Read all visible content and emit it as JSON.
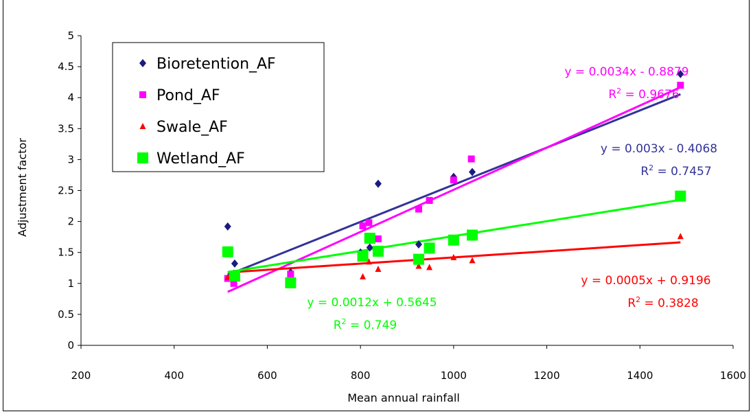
{
  "chart_data": {
    "type": "scatter",
    "xlabel": "Mean annual rainfall",
    "ylabel": "Adjustment factor",
    "xlim": [
      200,
      1600
    ],
    "ylim": [
      0,
      5
    ],
    "xticks": [
      "200",
      "400",
      "600",
      "800",
      "1000",
      "1200",
      "1400",
      "1600"
    ],
    "yticks": [
      "0",
      "0.5",
      "1",
      "1.5",
      "2",
      "2.5",
      "3",
      "3.5",
      "4",
      "4.5",
      "5"
    ],
    "legend_position": "top-left",
    "series": [
      {
        "name": "Bioretention_AF",
        "color": "#1a1a80",
        "marker": "diamond",
        "points": [
          [
            515,
            1.92
          ],
          [
            530,
            1.32
          ],
          [
            650,
            1.18
          ],
          [
            800,
            1.5
          ],
          [
            820,
            1.58
          ],
          [
            838,
            2.61
          ],
          [
            925,
            1.63
          ],
          [
            1000,
            2.72
          ],
          [
            1040,
            2.8
          ],
          [
            1487,
            4.38
          ]
        ],
        "trendline": {
          "slope": 0.003,
          "intercept": -0.4068,
          "color": "#333399",
          "label": "y = 0.003x - 0.4068",
          "r2": "R2 = 0.7457"
        }
      },
      {
        "name": "Pond_AF",
        "color": "#ff00ff",
        "marker": "square",
        "points": [
          [
            515,
            1.08
          ],
          [
            528,
            1.0
          ],
          [
            650,
            1.15
          ],
          [
            805,
            1.93
          ],
          [
            818,
            1.98
          ],
          [
            838,
            1.72
          ],
          [
            925,
            2.2
          ],
          [
            948,
            2.34
          ],
          [
            1000,
            2.67
          ],
          [
            1038,
            3.01
          ],
          [
            1487,
            4.2
          ]
        ],
        "trendline": {
          "slope": 0.0034,
          "intercept": -0.8879,
          "color": "#ff00ff",
          "label": "y = 0.0034x - 0.8879",
          "r2": "R2 = 0.9676"
        }
      },
      {
        "name": "Swale_AF",
        "color": "#ff0000",
        "marker": "triangle",
        "points": [
          [
            515,
            1.1
          ],
          [
            528,
            1.17
          ],
          [
            650,
            1.05
          ],
          [
            805,
            1.11
          ],
          [
            818,
            1.35
          ],
          [
            838,
            1.23
          ],
          [
            925,
            1.28
          ],
          [
            948,
            1.26
          ],
          [
            1000,
            1.42
          ],
          [
            1040,
            1.37
          ],
          [
            1487,
            1.76
          ]
        ],
        "trendline": {
          "slope": 0.0005,
          "intercept": 0.9196,
          "color": "#ff0000",
          "label": "y = 0.0005x + 0.9196",
          "r2": "R2 = 0.3828"
        }
      },
      {
        "name": "Wetland_AF",
        "color": "#00ff00",
        "marker": "bigsquare",
        "points": [
          [
            515,
            1.51
          ],
          [
            530,
            1.12
          ],
          [
            650,
            1.01
          ],
          [
            805,
            1.44
          ],
          [
            820,
            1.73
          ],
          [
            838,
            1.52
          ],
          [
            925,
            1.39
          ],
          [
            948,
            1.57
          ],
          [
            1000,
            1.7
          ],
          [
            1040,
            1.78
          ],
          [
            1487,
            2.41
          ]
        ],
        "trendline": {
          "slope": 0.0012,
          "intercept": 0.5645,
          "color": "#00ff00",
          "label": "y = 0.0012x + 0.5645",
          "r2": "R2 = 0.749"
        }
      }
    ]
  }
}
